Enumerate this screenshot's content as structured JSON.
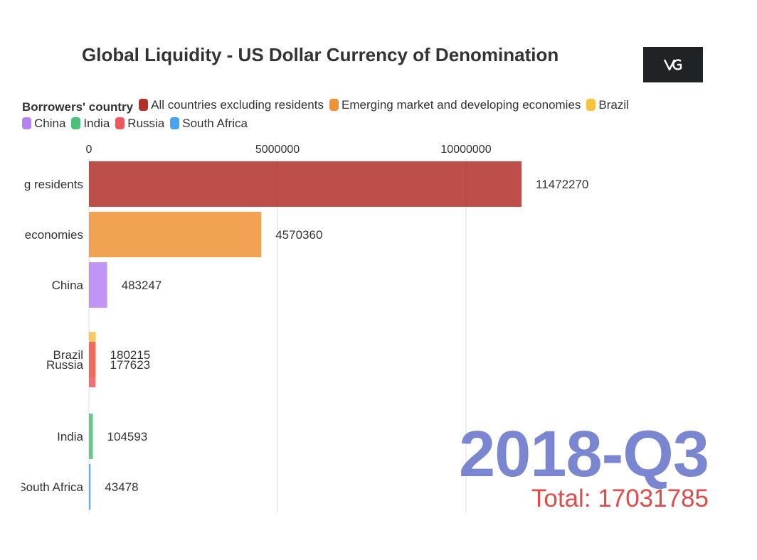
{
  "title": "Global Liquidity - US Dollar Currency of Denomination",
  "legend": {
    "title": "Borrowers' country",
    "items": [
      {
        "label": "All countries excluding residents",
        "color": "#b22f2a"
      },
      {
        "label": "Emerging market and developing economies",
        "color": "#ef9234"
      },
      {
        "label": "Brazil",
        "color": "#f5c242"
      },
      {
        "label": "China",
        "color": "#b483f5"
      },
      {
        "label": "India",
        "color": "#4dbf7c"
      },
      {
        "label": "Russia",
        "color": "#ec5a5e"
      },
      {
        "label": "South Africa",
        "color": "#46a5ef"
      }
    ]
  },
  "period": "2018-Q3",
  "total": "Total: 17031785",
  "chart_data": {
    "type": "bar",
    "orientation": "horizontal",
    "x_ticks": [
      "0",
      "5000000",
      "10000000"
    ],
    "xlim": [
      0,
      12000000
    ],
    "grid": true,
    "bars": [
      {
        "name": "All countries excluding residents",
        "label": "g residents",
        "value": 11472270,
        "value_label": "11472270",
        "color": "#b22f2a"
      },
      {
        "name": "Emerging market and developing economies",
        "label": "economies",
        "value": 4570360,
        "value_label": "4570360",
        "color": "#ef9234"
      },
      {
        "name": "China",
        "label": "China",
        "value": 483247,
        "value_label": "483247",
        "color": "#b483f5"
      },
      {
        "name": "Brazil",
        "label": "Brazil",
        "value": 180215,
        "value_label": "180215",
        "color": "#f5c242"
      },
      {
        "name": "Russia",
        "label": "Russia",
        "value": 177623,
        "value_label": "177623",
        "color": "#ec5a5e"
      },
      {
        "name": "India",
        "label": "India",
        "value": 104593,
        "value_label": "104593",
        "color": "#4dbf7c"
      },
      {
        "name": "South Africa",
        "label": "South Africa",
        "value": 43478,
        "value_label": "43478",
        "color": "#46a5ef"
      }
    ]
  }
}
